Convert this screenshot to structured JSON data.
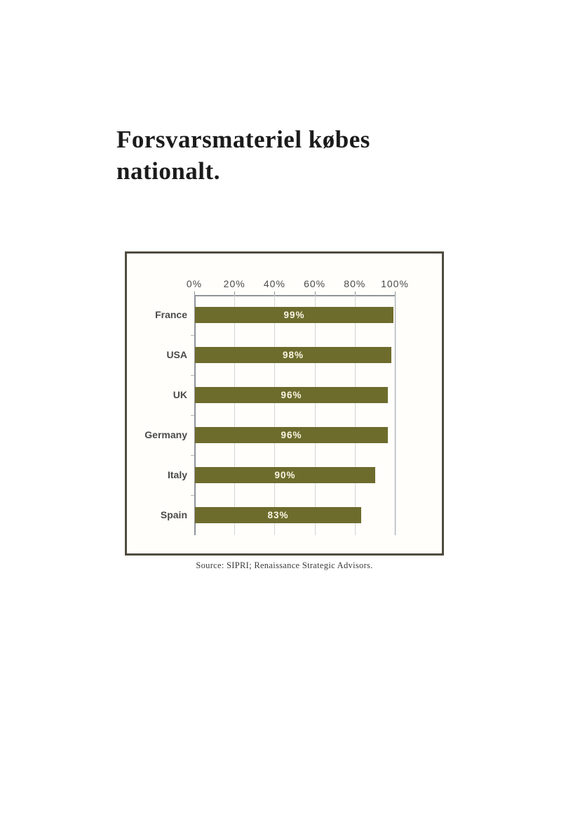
{
  "title": {
    "text": "Forsvarsmateriel købes nationalt."
  },
  "chart": {
    "source": "Source: SIPRI; Renaissance Strategic Advisors."
  },
  "chart_data": {
    "type": "bar",
    "orientation": "horizontal",
    "title": "Forsvarsmateriel købes nationalt.",
    "categories": [
      "France",
      "USA",
      "UK",
      "Germany",
      "Italy",
      "Spain"
    ],
    "values": [
      99,
      98,
      96,
      96,
      90,
      83
    ],
    "value_labels": [
      "99%",
      "98%",
      "96%",
      "96%",
      "90%",
      "83%"
    ],
    "x_ticks": [
      0,
      20,
      40,
      60,
      80,
      100
    ],
    "x_tick_labels": [
      "0%",
      "20%",
      "40%",
      "60%",
      "80%",
      "100%"
    ],
    "xlim": [
      0,
      100
    ],
    "xlabel": "",
    "ylabel": "",
    "grid": "vertical-gridlines-at-20pct-steps",
    "legend": "none",
    "axis_position": "top",
    "bar_color": "#6e6c2d",
    "value_label_color": "#faf5e4",
    "source": "Source: SIPRI; Renaissance Strategic Advisors."
  },
  "colors": {
    "frame_border": "#4f4c3f",
    "axis_line": "#8f949a",
    "gridline": "#d2d4d6",
    "category_label": "#4a4a4a",
    "title_text": "#1b1b1b",
    "source_text": "#3b3b3b",
    "page_background": "#ffffff"
  }
}
